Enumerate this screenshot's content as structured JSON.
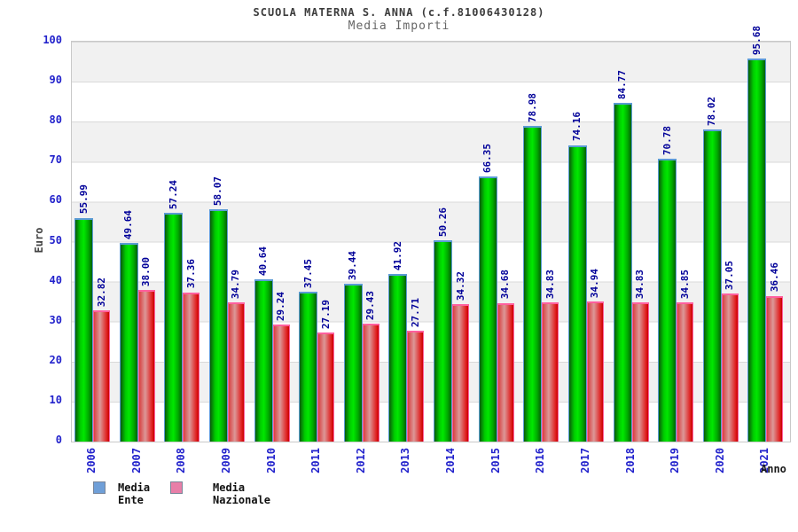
{
  "chart_data": {
    "type": "bar",
    "title": "SCUOLA MATERNA S. ANNA (c.f.81006430128)",
    "subtitle": "Media Importi",
    "xlabel": "Anno",
    "ylabel": "Euro",
    "ylim": [
      0,
      100
    ],
    "ytick_step": 10,
    "grid": "horizontal-bands-alternating",
    "legend_position": "bottom-left",
    "categories": [
      "2006",
      "2007",
      "2008",
      "2009",
      "2010",
      "2011",
      "2012",
      "2013",
      "2014",
      "2015",
      "2016",
      "2017",
      "2018",
      "2019",
      "2020",
      "2021"
    ],
    "series": [
      {
        "name": "Media Ente",
        "legend_color": "#6f9fd8",
        "bar_style": "green-gradient",
        "values": [
          55.99,
          49.64,
          57.24,
          58.07,
          40.64,
          37.45,
          39.44,
          41.92,
          50.26,
          66.35,
          78.98,
          74.16,
          84.77,
          70.78,
          78.02,
          95.68
        ]
      },
      {
        "name": "Media Nazionale",
        "legend_color": "#e87fa8",
        "bar_style": "red-gradient",
        "values": [
          32.82,
          38.0,
          37.36,
          34.79,
          29.24,
          27.19,
          29.43,
          27.71,
          34.32,
          34.68,
          34.83,
          34.94,
          34.83,
          34.85,
          37.05,
          36.46
        ]
      }
    ],
    "value_label_color": "#000099",
    "tick_label_color": "#2222cc"
  }
}
